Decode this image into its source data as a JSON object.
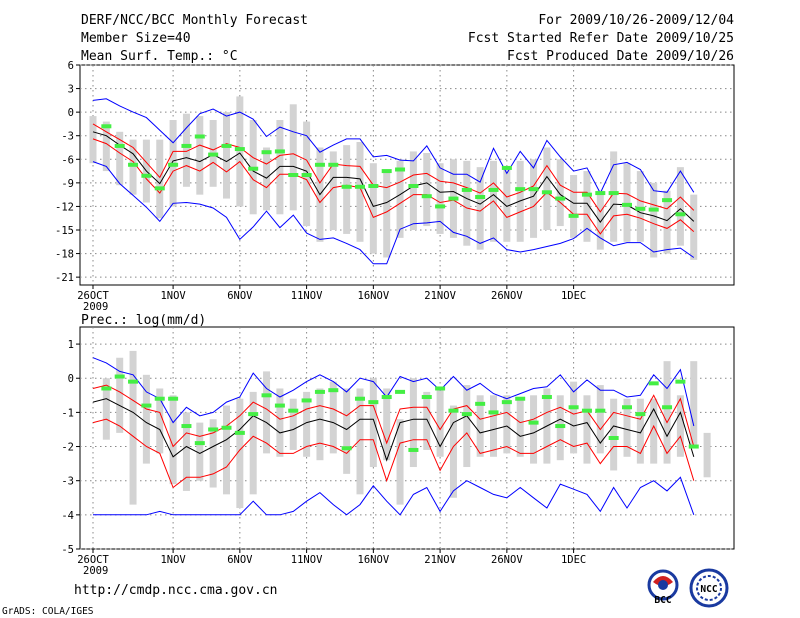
{
  "header": {
    "title": "DERF/NCC/BCC Monthly Forecast",
    "member_size": "Member Size=40",
    "variable": "Mean Surf. Temp.: °C",
    "period": "For 2009/10/26-2009/12/04",
    "start_date": "Fcst Started Refer Date 2009/10/25",
    "produced_date": "Fcst Produced Date 2009/10/26"
  },
  "footer": {
    "url": "http://cmdp.ncc.cma.gov.cn",
    "credit": "GrADS: COLA/IGES",
    "logo_bcc_text": "BCC",
    "logo_ncc_text": "NCC"
  },
  "colors": {
    "envelope": "#0000ff",
    "spread": "#ff0000",
    "mean": "#000000",
    "box": "#d3d3d3",
    "marker": "#44ee44"
  },
  "chart_data": [
    {
      "type": "line",
      "title": "Mean Surf. Temp.: °C",
      "x_tick_labels": [
        "26OCT",
        "1NOV",
        "6NOV",
        "11NOV",
        "16NOV",
        "21NOV",
        "26NOV",
        "1DEC"
      ],
      "x_tick_days": [
        0,
        6,
        11,
        16,
        21,
        26,
        31,
        36
      ],
      "x_year_label": "2009",
      "y_ticks": [
        6,
        3,
        0,
        -3,
        -6,
        -9,
        -12,
        -15,
        -18,
        -21
      ],
      "ylim": [
        -22,
        6
      ],
      "series": [
        {
          "name": "max",
          "color": "#0000ff",
          "values": [
            1.5,
            1.7,
            0.8,
            0,
            -0.7,
            -2.3,
            -3.9,
            -2,
            -0.2,
            0.4,
            -0.5,
            0,
            -0.9,
            -3.1,
            -1.9,
            -2.5,
            -3,
            -5.1,
            -4.2,
            -3.4,
            -3.4,
            -5.7,
            -5.5,
            -6.1,
            -6.2,
            -4.3,
            -7.1,
            -7.9,
            -7.9,
            -8.9,
            -4.6,
            -7.8,
            -5,
            -7.1,
            -3.6,
            -5.7,
            -7.5,
            -7.1,
            -10.3,
            -6.7,
            -6.4,
            -7.3,
            -10,
            -10.2,
            -7.5,
            -10.2
          ]
        },
        {
          "name": "upper",
          "color": "#ff0000",
          "values": [
            -1.5,
            -2.5,
            -3.5,
            -4.5,
            -6.4,
            -8.3,
            -5,
            -5,
            -4.2,
            -4.8,
            -4,
            -4.5,
            -5.8,
            -6.6,
            -5.5,
            -5.3,
            -6.1,
            -9,
            -6.6,
            -6.8,
            -6.9,
            -9.3,
            -9.6,
            -8.9,
            -8,
            -7.8,
            -8.8,
            -9,
            -9.6,
            -10.3,
            -9,
            -10.8,
            -10.2,
            -9.4,
            -6.8,
            -9.3,
            -10.2,
            -10.2,
            -12.7,
            -10.3,
            -10.4,
            -11.3,
            -11.8,
            -12.3,
            -10.8,
            -12.5
          ]
        },
        {
          "name": "mean",
          "color": "#000000",
          "values": [
            -2.5,
            -3,
            -4.2,
            -5.3,
            -7.5,
            -9.1,
            -6.2,
            -5.8,
            -6.3,
            -5.4,
            -6.3,
            -5.2,
            -7.5,
            -8.4,
            -6.9,
            -6.9,
            -7.5,
            -10.5,
            -8.3,
            -8.3,
            -8.5,
            -12,
            -11.5,
            -10.5,
            -9.4,
            -9,
            -10.2,
            -10.1,
            -11,
            -11.7,
            -10.5,
            -12,
            -11.3,
            -10.7,
            -8.2,
            -10.5,
            -11.6,
            -11.6,
            -14,
            -11.7,
            -11.8,
            -12.8,
            -13.2,
            -13.8,
            -12.3,
            -13.9
          ]
        },
        {
          "name": "lower",
          "color": "#ff0000",
          "values": [
            -3.4,
            -4,
            -5.2,
            -6.3,
            -8.5,
            -10.3,
            -7.5,
            -6.8,
            -7.5,
            -6.4,
            -7.6,
            -6.3,
            -8.6,
            -9.6,
            -7.9,
            -7.9,
            -8.6,
            -11.5,
            -9.6,
            -9.3,
            -9.6,
            -13.4,
            -12.7,
            -11.6,
            -10.5,
            -10.5,
            -11.5,
            -11.2,
            -12.2,
            -12.6,
            -11.3,
            -13.4,
            -12.7,
            -12,
            -10.2,
            -11.5,
            -13,
            -13,
            -15.5,
            -13.2,
            -13,
            -13.5,
            -14.2,
            -14.8,
            -13.7,
            -15.2
          ]
        },
        {
          "name": "min",
          "color": "#0000ff",
          "values": [
            -6.3,
            -6.9,
            -9.1,
            -10.6,
            -12.1,
            -13.9,
            -11.6,
            -11.5,
            -11.7,
            -12.2,
            -13.4,
            -16.2,
            -14.6,
            -12.6,
            -14.7,
            -13.1,
            -15.4,
            -16.2,
            -16,
            -16.7,
            -17.5,
            -19.3,
            -19.3,
            -14.9,
            -14.2,
            -14.1,
            -13.9,
            -15.3,
            -15.8,
            -16.7,
            -16,
            -17.5,
            -17.8,
            -17.5,
            -17.1,
            -16.7,
            -16.1,
            -14.8,
            -16,
            -17,
            -16.6,
            -16.6,
            -17.8,
            -17.5,
            -17.3,
            -18.5
          ]
        }
      ],
      "boxes": {
        "top": [
          -0.5,
          -1.2,
          -2.5,
          -3.5,
          -3.5,
          -3.5,
          -1,
          -0.2,
          -0.5,
          -1,
          0,
          2,
          -1,
          -4.5,
          -1,
          1,
          -1.2,
          -4.5,
          -5,
          -4.2,
          -3.8,
          -6.5,
          -7.5,
          -6.2,
          -5,
          -5.2,
          -6.5,
          -6,
          -6.2,
          -7,
          -6.2,
          -7.2,
          -6.2,
          -6,
          -4.5,
          -6,
          -8,
          -7.5,
          -10,
          -5,
          -6.5,
          -7.5,
          -9,
          -10,
          -7,
          -10.5
        ],
        "bottom": [
          -6.5,
          -7.5,
          -9.3,
          -10.5,
          -11.5,
          -13.5,
          -12,
          -9.5,
          -10.5,
          -9.5,
          -11,
          -12,
          -13,
          -12.5,
          -13,
          -12.5,
          -14.5,
          -16.5,
          -15,
          -15.5,
          -16.5,
          -18,
          -18.5,
          -16,
          -15,
          -14.5,
          -15.5,
          -16,
          -17,
          -17.5,
          -16.5,
          -16.5,
          -16.5,
          -16,
          -15,
          -14.5,
          -16,
          -16.5,
          -17.5,
          -16.5,
          -16.5,
          -16.5,
          -18.5,
          -18,
          -17,
          -18.8
        ]
      },
      "markers": [
        -1.8,
        -4.3,
        -6.7,
        -8.1,
        -9.7,
        -6.7,
        -4.3,
        -3.1,
        -5.4,
        -4.3,
        -4.7,
        -7.2,
        -5.1,
        -5,
        -8,
        -8,
        -6.7,
        -6.7,
        -9.5,
        -9.5,
        -9.4,
        -7.5,
        -7.3,
        -9.4,
        -10.7,
        -12,
        -11,
        -9.9,
        -10.8,
        -9.9,
        -7.1,
        -9.8,
        -9.8,
        -10.2,
        -11,
        -13.2,
        -10.5,
        -10.3,
        -10.3,
        -11.8,
        -12.3,
        -12.4,
        -11.2,
        -13
      ]
    },
    {
      "type": "line",
      "title": "Prec.: log(mm/d)",
      "x_tick_labels": [
        "26OCT",
        "1NOV",
        "6NOV",
        "11NOV",
        "16NOV",
        "21NOV",
        "26NOV",
        "1DEC"
      ],
      "x_tick_days": [
        0,
        6,
        11,
        16,
        21,
        26,
        31,
        36
      ],
      "x_year_label": "2009",
      "y_ticks": [
        1,
        0,
        -1,
        -2,
        -3,
        -4,
        -5
      ],
      "ylim": [
        -5,
        1.5
      ],
      "series": [
        {
          "name": "max",
          "color": "#0000ff",
          "values": [
            0.6,
            0.45,
            0.2,
            0.1,
            -0.4,
            -0.6,
            -1.3,
            -0.85,
            -1.1,
            -1,
            -0.7,
            -0.55,
            0.15,
            -0.3,
            -0.55,
            -0.35,
            -0.1,
            0.1,
            -0.1,
            -0.4,
            0,
            -0.1,
            -0.55,
            0.05,
            -0.1,
            0,
            -0.35,
            0.05,
            -0.35,
            -0.15,
            -0.45,
            -0.6,
            -0.45,
            -0.3,
            -0.25,
            0.1,
            -0.4,
            -0.05,
            -0.35,
            -0.35,
            -0.55,
            -0.5,
            0.1,
            -0.3,
            0.25,
            -1.4
          ]
        },
        {
          "name": "upper",
          "color": "#ff0000",
          "values": [
            -0.3,
            -0.2,
            -0.4,
            -0.65,
            -0.9,
            -1,
            -2,
            -1.6,
            -1.7,
            -1.6,
            -1.4,
            -1.1,
            -0.7,
            -0.9,
            -1.2,
            -1.1,
            -0.9,
            -0.8,
            -0.9,
            -1.1,
            -0.8,
            -0.8,
            -1.9,
            -0.9,
            -0.85,
            -0.85,
            -1.5,
            -0.9,
            -0.8,
            -1.2,
            -1.1,
            -1,
            -1.3,
            -1.2,
            -1,
            -0.85,
            -1.05,
            -0.95,
            -1.5,
            -1,
            -1.1,
            -1.2,
            -0.5,
            -1.3,
            -0.6,
            -2
          ]
        },
        {
          "name": "mean",
          "color": "#000000",
          "values": [
            -0.7,
            -0.6,
            -0.8,
            -1,
            -1.3,
            -1.5,
            -2.3,
            -2,
            -2.2,
            -2,
            -1.8,
            -1.5,
            -1.1,
            -1.3,
            -1.6,
            -1.5,
            -1.3,
            -1.2,
            -1.3,
            -1.5,
            -1.2,
            -1.2,
            -2.4,
            -1.3,
            -1.2,
            -1.2,
            -2,
            -1.3,
            -1.1,
            -1.6,
            -1.5,
            -1.4,
            -1.7,
            -1.6,
            -1.4,
            -1.2,
            -1.4,
            -1.3,
            -1.9,
            -1.4,
            -1.5,
            -1.6,
            -0.9,
            -1.7,
            -1,
            -2.3
          ]
        },
        {
          "name": "lower",
          "color": "#ff0000",
          "values": [
            -1.3,
            -1.2,
            -1.4,
            -1.7,
            -2,
            -2.2,
            -3.2,
            -2.9,
            -2.9,
            -2.8,
            -2.6,
            -2.1,
            -1.7,
            -1.9,
            -2.2,
            -2.2,
            -2,
            -1.9,
            -2,
            -2.2,
            -1.8,
            -1.8,
            -3,
            -1.9,
            -1.8,
            -1.8,
            -2.7,
            -2,
            -1.6,
            -2.2,
            -2.1,
            -2,
            -2.2,
            -2.2,
            -2,
            -1.8,
            -2,
            -1.9,
            -2.5,
            -2,
            -2,
            -2.2,
            -1.4,
            -2.2,
            -1.7,
            -3
          ]
        },
        {
          "name": "min",
          "color": "#0000ff",
          "values": [
            -4,
            -4,
            -4,
            -4,
            -4,
            -3.9,
            -4,
            -4,
            -4,
            -4,
            -4,
            -4,
            -3.6,
            -4,
            -4,
            -3.9,
            -3.6,
            -3.35,
            -3.7,
            -4,
            -3.7,
            -3.15,
            -3.6,
            -4,
            -3.4,
            -3.2,
            -3.9,
            -3.3,
            -3,
            -3.2,
            -3.4,
            -3.5,
            -3.2,
            -3.5,
            -3.8,
            -3.1,
            -3.25,
            -3.4,
            -3.9,
            -3.2,
            -3.8,
            -3.2,
            -3,
            -3.3,
            -2.9,
            -4
          ]
        }
      ],
      "boxes": {
        "top": [
          0,
          0.6,
          0.8,
          0.1,
          -0.3,
          -0.5,
          -1,
          -1.3,
          -1.2,
          -0.8,
          -0.6,
          -0.4,
          0.2,
          -0.3,
          -0.6,
          -0.4,
          -0.3,
          -0.1,
          -0.3,
          -0.3,
          0,
          -0.3,
          -1.2,
          0,
          -0.4,
          -0.3,
          -0.8,
          -0.2,
          -0.5,
          -0.5,
          -0.5,
          -0.6,
          -0.5,
          -0.3,
          -0.5,
          -0.1,
          -0.5,
          -0.2,
          -0.6,
          -0.6,
          -0.6,
          -0.6,
          0.5,
          -0.5,
          0.5,
          -1.6
        ],
        "bottom": [
          -1.8,
          -1.6,
          -3.7,
          -2.5,
          -2.2,
          -3.1,
          -3.3,
          -3,
          -3.2,
          -3.4,
          -3.8,
          -3.4,
          -2.2,
          -2.3,
          -2.1,
          -2.3,
          -2.4,
          -2.2,
          -2.8,
          -3.4,
          -2.6,
          -2.4,
          -3.7,
          -2.6,
          -2.1,
          -2.3,
          -3.5,
          -2.6,
          -2.3,
          -2.3,
          -2.2,
          -2.3,
          -2.5,
          -2.5,
          -2.4,
          -2.2,
          -2.5,
          -2.2,
          -2.7,
          -2.3,
          -2.5,
          -2.5,
          -2.5,
          -2.3,
          -2,
          -2.9
        ],
        "start_index": 1
      },
      "markers": [
        -0.3,
        0.05,
        -0.1,
        -0.8,
        -0.6,
        -0.6,
        -1.4,
        -1.9,
        -1.5,
        -1.45,
        -1.6,
        -1.05,
        -0.5,
        -0.8,
        -0.95,
        -0.65,
        -0.4,
        -0.35,
        -2.05,
        -0.6,
        -0.7,
        -0.55,
        -0.4,
        -2.1,
        -0.55,
        -0.3,
        -0.95,
        -1.05,
        -0.75,
        -1,
        -0.7,
        -0.6,
        -1.3,
        -0.55,
        -1.4,
        -0.85,
        -0.95,
        -0.95,
        -1.75,
        -0.85,
        -1.05,
        -0.15,
        -0.85,
        -0.1,
        -2.0
      ]
    }
  ]
}
